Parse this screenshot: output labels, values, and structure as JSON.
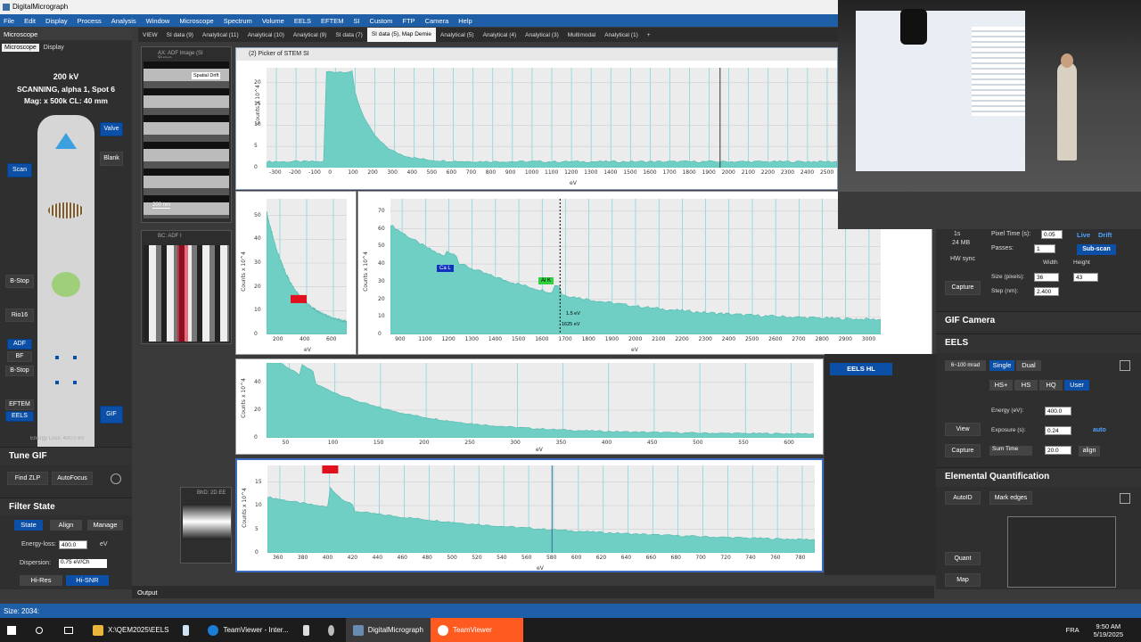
{
  "app": {
    "title": "DigitalMicrograph"
  },
  "menu": [
    "File",
    "Edit",
    "Display",
    "Process",
    "Analysis",
    "Window",
    "Microscope",
    "Spectrum",
    "Volume",
    "EELS",
    "EFTEM",
    "SI",
    "Custom",
    "FTP",
    "Camera",
    "Help"
  ],
  "left_panel": {
    "header": "Microscope",
    "tabs": [
      "Microscope",
      "Display"
    ],
    "kv": "200 kV",
    "mode": "SCANNING, alpha 1, Spot 6",
    "mag": "Mag: x 500k    CL: 40 mm",
    "buttons": {
      "valve": "Valve",
      "blank": "Blank",
      "scan": "Scan",
      "bstop": "B-Stop",
      "rio16": "Rio16",
      "adf": "ADF",
      "bf": "BF",
      "bstop2": "B-Stop",
      "eftem": "EFTEM",
      "eels": "EELS",
      "gif": "GIF"
    },
    "energy_loss_line": "Energy Loss: 400.0 eV",
    "tune_gif": {
      "title": "Tune GIF",
      "find_zlp": "Find ZLP",
      "autofocus": "AutoFocus"
    },
    "filter_state": {
      "title": "Filter State",
      "tabs": [
        "State",
        "Align",
        "Manage"
      ],
      "energy_loss_label": "Energy-loss:",
      "energy_loss_value": "400.0",
      "energy_unit": "eV",
      "dispersion_label": "Dispersion:",
      "dispersion_value": "0.75 eV/Ch",
      "hi_res": "Hi-Res",
      "hi_snr": "Hi-SNR"
    }
  },
  "workspace_tabs": [
    "VIEW",
    "SI data (9)",
    "Analytical (11)",
    "Analytical (10)",
    "Analytical (9)",
    "SI data (7)",
    "SI data (5), Map Demie",
    "Analytical (5)",
    "Analytical (4)",
    "Analytical (3)",
    "Multimodal",
    "Analytical (1)",
    "+"
  ],
  "thumbs": {
    "adf": {
      "title": "AX: ADF Image (SI Surve",
      "label": "Spatial Drift",
      "scale": "200 nm"
    },
    "adf2": {
      "title": "BC: ADF I"
    },
    "eels2d": {
      "title": "BhD: 2D EE"
    }
  },
  "picker_title": "(2) Picker of STEM SI",
  "plots": {
    "top": {
      "ylabel": "Counts x 10^4",
      "xlabel": "eV",
      "xticks": [
        "-300",
        "-200",
        "-100",
        "0",
        "100",
        "200",
        "300",
        "400",
        "500",
        "600",
        "700",
        "800",
        "900",
        "1000",
        "1100",
        "1200",
        "1300",
        "1400",
        "1500",
        "1600",
        "1700",
        "1800",
        "1900",
        "2000",
        "2100",
        "2200",
        "2300",
        "2400",
        "2500"
      ],
      "yticks": [
        "0",
        "5",
        "10",
        "15",
        "20"
      ]
    },
    "mid_left": {
      "ylabel": "Counts x 10^4",
      "xlabel": "eV",
      "xticks": [
        "200",
        "400",
        "600"
      ],
      "yticks": [
        "0",
        "10",
        "20",
        "30",
        "40",
        "50"
      ]
    },
    "mid_main": {
      "ylabel": "Counts x 10^4",
      "xlabel": "eV",
      "xticks": [
        "900",
        "1100",
        "1200",
        "1300",
        "1400",
        "1500",
        "1600",
        "1700",
        "1800",
        "1900",
        "2000",
        "2100",
        "2200",
        "2300",
        "2400",
        "2500",
        "2600",
        "2700",
        "2800",
        "2900",
        "3000"
      ],
      "yticks": [
        "0",
        "10",
        "20",
        "30",
        "40",
        "50",
        "60",
        "70"
      ],
      "label_ca": "Ca L",
      "label_al": "Al K",
      "cursor_a": "1.5 eV",
      "cursor_b": "1625 eV"
    },
    "lower": {
      "ylabel": "Counts x 10^4",
      "xlabel": "eV",
      "xticks": [
        "50",
        "100",
        "150",
        "200",
        "250",
        "300",
        "350",
        "400",
        "450",
        "500",
        "550",
        "600"
      ],
      "yticks": [
        "0",
        "20",
        "40"
      ]
    },
    "bottom": {
      "ylabel": "Counts x 10^4",
      "xlabel": "eV",
      "xticks": [
        "360",
        "380",
        "400",
        "420",
        "440",
        "460",
        "480",
        "500",
        "520",
        "540",
        "560",
        "580",
        "600",
        "620",
        "640",
        "660",
        "680",
        "700",
        "720",
        "740",
        "760",
        "780"
      ],
      "yticks": [
        "0",
        "5",
        "10",
        "15"
      ]
    }
  },
  "eels_hl": "EELS HL",
  "right_panel": {
    "top_rows": {
      "time_label": "1s",
      "mem": "24 MB",
      "hw_sync": "HW sync",
      "pixel_time_label": "Pixel Time (s):",
      "pixel_time": "0.05",
      "live": "Live",
      "drift": "Drift",
      "passes_label": "Passes:",
      "passes": "1",
      "subscan": "Sub-scan",
      "width_label": "Width",
      "height_label": "Height",
      "size_label": "Size (pixels):",
      "size_w": "36",
      "size_h": "43",
      "step_label": "Step (nm):",
      "step": "2.400",
      "capture": "Capture"
    },
    "gif_camera": "GIF Camera",
    "eels": {
      "title": "EELS",
      "aperture": "6~100 mrad",
      "single": "Single",
      "dual": "Dual",
      "modes": [
        "HS+",
        "HS",
        "HQ",
        "User"
      ],
      "energy_label": "Energy (eV):",
      "energy": "400.0",
      "exposure_label": "Exposure (s):",
      "exposure": "0.24",
      "auto": "auto",
      "view": "View",
      "capture": "Capture",
      "sum_time": "Sum Time",
      "sum_value": "20.0",
      "align": "align"
    },
    "quant": {
      "title": "Elemental Quantification",
      "autoid": "AutoID",
      "mark_edges": "Mark edges",
      "quant": "Quant",
      "map": "Map"
    }
  },
  "output": "Output",
  "status": "Size: 2034:",
  "taskbar": {
    "items": [
      "X:\\QEM2025\\EELS",
      "TeamViewer - Inter...",
      "DigitalMicrograph",
      "TeamViewer"
    ],
    "lang": "FRA",
    "time": "9:50 AM",
    "date": "5/19/2025"
  }
}
